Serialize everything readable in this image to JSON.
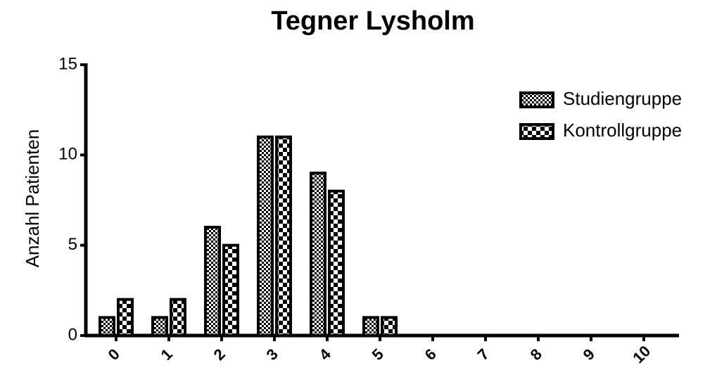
{
  "chart_data": {
    "type": "bar",
    "title": "Tegner Lysholm",
    "ylabel": "Anzahl Patienten",
    "categories": [
      "0",
      "1",
      "2",
      "3",
      "4",
      "5",
      "6",
      "7",
      "8",
      "9",
      "10"
    ],
    "series": [
      {
        "name": "Studiengruppe",
        "color": "#000000",
        "values": [
          1,
          1,
          6,
          11,
          9,
          1,
          0,
          0,
          0,
          0,
          0
        ]
      },
      {
        "name": "Kontrollgruppe",
        "color": "#000000",
        "values": [
          2,
          2,
          5,
          11,
          8,
          1,
          0,
          0,
          0,
          0,
          0
        ]
      }
    ],
    "ylim": [
      0,
      15
    ],
    "yticks": [
      0,
      5,
      10,
      15
    ],
    "grid": false,
    "legend": "upper right"
  }
}
